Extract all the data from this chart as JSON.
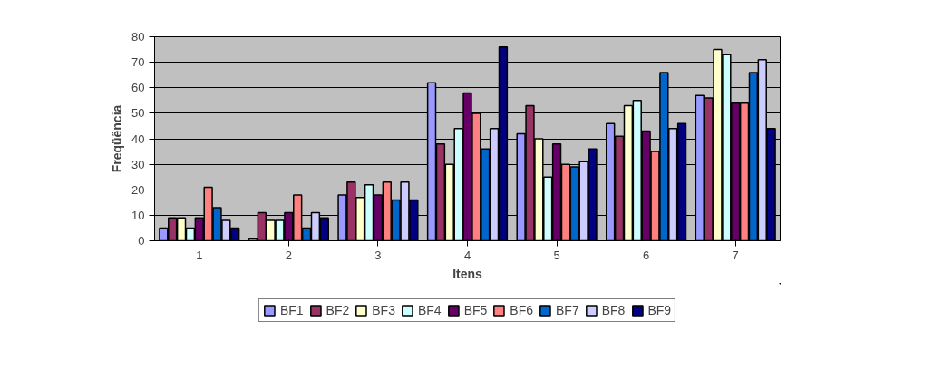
{
  "chart_data": {
    "type": "bar",
    "xlabel": "Itens",
    "ylabel": "Freqüência",
    "categories": [
      "1",
      "2",
      "3",
      "4",
      "5",
      "6",
      "7"
    ],
    "series": [
      {
        "name": "BF1",
        "color": "#9999ff",
        "values": [
          5,
          1,
          18,
          62,
          42,
          46,
          57
        ]
      },
      {
        "name": "BF2",
        "color": "#993366",
        "values": [
          9,
          11,
          23,
          38,
          53,
          41,
          56
        ]
      },
      {
        "name": "BF3",
        "color": "#ffffcc",
        "values": [
          9,
          8,
          17,
          30,
          40,
          53,
          75
        ]
      },
      {
        "name": "BF4",
        "color": "#ccffff",
        "values": [
          5,
          8,
          22,
          44,
          25,
          55,
          73
        ]
      },
      {
        "name": "BF5",
        "color": "#660066",
        "values": [
          9,
          11,
          18,
          58,
          38,
          43,
          54
        ]
      },
      {
        "name": "BF6",
        "color": "#ff8080",
        "values": [
          21,
          18,
          23,
          50,
          30,
          35,
          54
        ]
      },
      {
        "name": "BF7",
        "color": "#0066cc",
        "values": [
          13,
          5,
          16,
          36,
          29,
          66,
          66
        ]
      },
      {
        "name": "BF8",
        "color": "#ccccff",
        "values": [
          8,
          11,
          23,
          44,
          31,
          44,
          71
        ]
      },
      {
        "name": "BF9",
        "color": "#000080",
        "values": [
          5,
          9,
          16,
          76,
          36,
          46,
          44
        ]
      }
    ],
    "ylim": [
      0,
      80
    ],
    "yticks": [
      0,
      10,
      20,
      30,
      40,
      50,
      60,
      70,
      80
    ],
    "grid": "y",
    "legend": "bottom"
  }
}
